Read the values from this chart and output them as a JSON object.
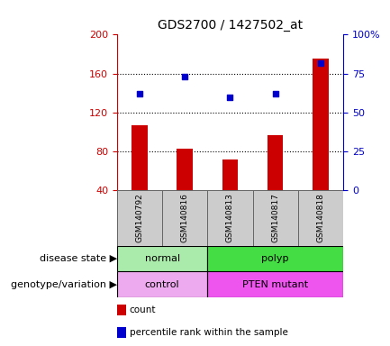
{
  "title": "GDS2700 / 1427502_at",
  "samples": [
    "GSM140792",
    "GSM140816",
    "GSM140813",
    "GSM140817",
    "GSM140818"
  ],
  "counts": [
    107,
    83,
    72,
    97,
    175
  ],
  "percentile_ranks": [
    62,
    73,
    60,
    62,
    82
  ],
  "ylim_left": [
    40,
    200
  ],
  "ylim_right": [
    0,
    100
  ],
  "yticks_left": [
    40,
    80,
    120,
    160,
    200
  ],
  "yticks_right": [
    0,
    25,
    50,
    75,
    100
  ],
  "bar_color": "#cc0000",
  "dot_color": "#0000cc",
  "grid_color": "#000000",
  "bar_width": 0.35,
  "disease_colors": {
    "normal": "#aaeaaa",
    "polyp": "#44dd44"
  },
  "genotype_colors": {
    "control": "#eeaaee",
    "PTEN mutant": "#ee55ee"
  },
  "label_disease": "disease state",
  "label_genotype": "genotype/variation",
  "legend_count": "count",
  "legend_percentile": "percentile rank within the sample",
  "tick_label_color_left": "#cc0000",
  "tick_label_color_right": "#0000cc",
  "sample_row_color": "#cccccc"
}
